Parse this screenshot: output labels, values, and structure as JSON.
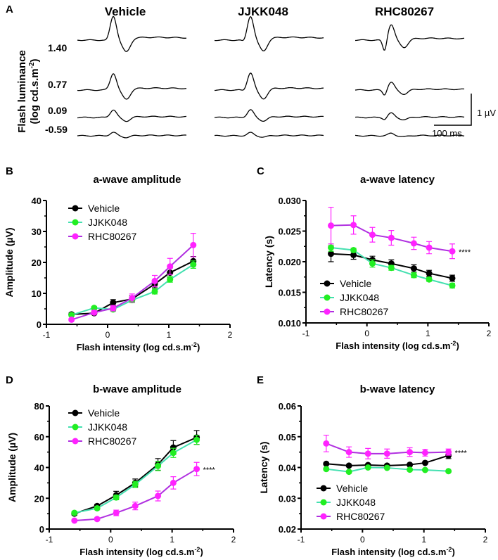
{
  "panel_a": {
    "label": "A",
    "conditions": [
      "Vehicle",
      "JJKK048",
      "RHC80267"
    ],
    "luminance_levels": [
      "1.40",
      "0.77",
      "0.09",
      "-0.59"
    ],
    "ylabel_line1": "Flash luminance",
    "ylabel_line2": "(log cd.s.m",
    "ylabel_sup": "-2",
    "ylabel_end": ")",
    "scale_voltage": "1 µV",
    "scale_time": "100 ms"
  },
  "colors": {
    "Vehicle": "#000000",
    "JJKK048": "#22ee22",
    "JJKK048_line": "#44e0b0",
    "RHC80267": "#ff22ff",
    "RHC80267_line": "#b030e0"
  },
  "chart_data": [
    {
      "panel": "B",
      "type": "line",
      "title": "a-wave amplitude",
      "xlabel": "Flash intensity (log cd.s.m",
      "xlabel_sup": "-2",
      "xlabel_end": ")",
      "ylabel": "Amplitude (µV)",
      "xlim": [
        -1,
        2
      ],
      "ylim": [
        0,
        40
      ],
      "xticks": [
        "-1",
        "0",
        "1",
        "2"
      ],
      "yticks": [
        "0",
        "10",
        "20",
        "30",
        "40"
      ],
      "legend": "top-left",
      "annotation": "",
      "x": [
        -0.59,
        -0.22,
        0.09,
        0.4,
        0.77,
        1.02,
        1.4
      ],
      "series": [
        {
          "name": "Vehicle",
          "values": [
            3.2,
            3.6,
            7.0,
            8.2,
            13.0,
            16.7,
            20.4
          ],
          "err": [
            0.5,
            0.5,
            1.0,
            1.0,
            1.2,
            1.5,
            1.5
          ]
        },
        {
          "name": "JJKK048",
          "values": [
            3.0,
            5.3,
            4.8,
            7.8,
            10.6,
            14.5,
            19.3
          ],
          "err": [
            0.4,
            0.5,
            0.6,
            0.8,
            0.8,
            0.9,
            1.2
          ]
        },
        {
          "name": "RHC80267",
          "values": [
            1.5,
            3.8,
            5.2,
            8.5,
            14.0,
            18.7,
            25.6
          ],
          "err": [
            0.4,
            0.6,
            0.9,
            1.3,
            1.8,
            2.6,
            3.8
          ]
        }
      ]
    },
    {
      "panel": "C",
      "type": "line",
      "title": "a-wave latency",
      "xlabel": "Flash intensity (log cd.s.m",
      "xlabel_sup": "-2",
      "xlabel_end": ")",
      "ylabel": "Latency (s)",
      "xlim": [
        -1,
        2
      ],
      "ylim": [
        0.01,
        0.03
      ],
      "xticks": [
        "-1",
        "0",
        "1",
        "2"
      ],
      "yticks": [
        "0.010",
        "0.015",
        "0.020",
        "0.025",
        "0.030"
      ],
      "legend": "bottom-left",
      "annotation": "****",
      "x": [
        -0.59,
        -0.22,
        0.09,
        0.4,
        0.77,
        1.02,
        1.4
      ],
      "series": [
        {
          "name": "Vehicle",
          "values": [
            0.0213,
            0.0211,
            0.0203,
            0.0197,
            0.0189,
            0.0181,
            0.0173
          ],
          "err": [
            0.0013,
            0.0007,
            0.0006,
            0.0006,
            0.0006,
            0.0005,
            0.0005
          ]
        },
        {
          "name": "JJKK048",
          "values": [
            0.0223,
            0.0219,
            0.0197,
            0.019,
            0.0178,
            0.0171,
            0.0161
          ],
          "err": [
            0.0006,
            0.0003,
            0.0006,
            0.0004,
            0.0004,
            0.0003,
            0.0004
          ]
        },
        {
          "name": "RHC80267",
          "values": [
            0.0259,
            0.026,
            0.0244,
            0.0239,
            0.023,
            0.0223,
            0.0217
          ],
          "err": [
            0.003,
            0.0015,
            0.0012,
            0.0012,
            0.001,
            0.001,
            0.0012
          ]
        }
      ]
    },
    {
      "panel": "D",
      "type": "line",
      "title": "b-wave amplitude",
      "xlabel": "Flash intensity (log cd.s.m",
      "xlabel_sup": "-2",
      "xlabel_end": ")",
      "ylabel": "Amplitude (µV)",
      "xlim": [
        -1,
        2
      ],
      "ylim": [
        0,
        80
      ],
      "xticks": [
        "-1",
        "0",
        "1",
        "2"
      ],
      "yticks": [
        "0",
        "20",
        "40",
        "60",
        "80"
      ],
      "legend": "top-left",
      "annotation": "****",
      "x": [
        -0.59,
        -0.22,
        0.09,
        0.4,
        0.77,
        1.02,
        1.4
      ],
      "series": [
        {
          "name": "Vehicle",
          "values": [
            10.0,
            15.0,
            22.0,
            30.0,
            42.0,
            53.0,
            59.5
          ],
          "err": [
            1.0,
            1.0,
            2.5,
            2.5,
            3.8,
            4.5,
            4.5
          ]
        },
        {
          "name": "JJKK048",
          "values": [
            10.5,
            13.5,
            20.5,
            29.0,
            41.0,
            49.5,
            58.0
          ],
          "err": [
            1.0,
            1.0,
            1.5,
            2.0,
            3.0,
            3.0,
            3.0
          ]
        },
        {
          "name": "RHC80267",
          "values": [
            5.5,
            6.5,
            10.5,
            15.0,
            21.5,
            30.0,
            39.0
          ],
          "err": [
            0.6,
            0.8,
            1.8,
            2.5,
            3.2,
            4.0,
            4.3
          ]
        }
      ]
    },
    {
      "panel": "E",
      "type": "line",
      "title": "b-wave latency",
      "xlabel": "Flash intensity (log cd.s.m",
      "xlabel_sup": "-2",
      "xlabel_end": ")",
      "ylabel": "Latency (s)",
      "xlim": [
        -1,
        2
      ],
      "ylim": [
        0.02,
        0.06
      ],
      "xticks": [
        "-1",
        "0",
        "1",
        "2"
      ],
      "yticks": [
        "0.02",
        "0.03",
        "0.04",
        "0.05",
        "0.06"
      ],
      "legend": "bottom-left",
      "annotation": "****",
      "x": [
        -0.59,
        -0.22,
        0.09,
        0.4,
        0.77,
        1.02,
        1.4
      ],
      "series": [
        {
          "name": "Vehicle",
          "values": [
            0.0412,
            0.0406,
            0.0408,
            0.0406,
            0.0409,
            0.0415,
            0.0439
          ],
          "err": [
            0.0003,
            0.0003,
            0.0003,
            0.0003,
            0.0003,
            0.0003,
            0.001
          ]
        },
        {
          "name": "JJKK048",
          "values": [
            0.0395,
            0.0386,
            0.04,
            0.0399,
            0.0393,
            0.0392,
            0.0388
          ],
          "err": [
            0.0002,
            0.0002,
            0.0002,
            0.0002,
            0.0002,
            0.0002,
            0.0002
          ]
        },
        {
          "name": "RHC80267",
          "values": [
            0.0478,
            0.045,
            0.0445,
            0.0445,
            0.045,
            0.0448,
            0.045
          ],
          "err": [
            0.0027,
            0.0017,
            0.0017,
            0.0015,
            0.0014,
            0.0011,
            0.001
          ]
        }
      ]
    }
  ]
}
